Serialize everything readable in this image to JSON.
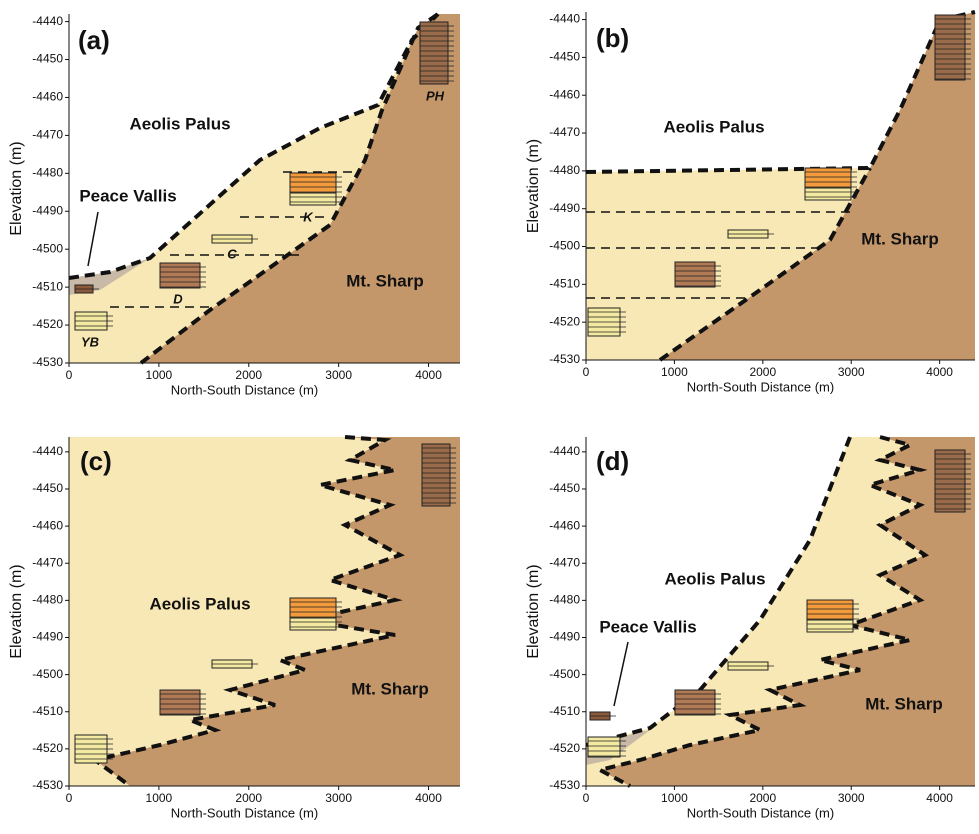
{
  "chart_data": [
    {
      "type": "cross-section",
      "panel_label": "(a)",
      "xlabel": "North-South Distance (m)",
      "ylabel": "Elevation (m)",
      "xlim": [
        0,
        4350
      ],
      "xticks": [
        0,
        1000,
        2000,
        3000,
        4000
      ],
      "ylim": [
        -4530,
        -4438
      ],
      "yticks": [
        -4530,
        -4520,
        -4510,
        -4500,
        -4490,
        -4480,
        -4470,
        -4460,
        -4450,
        -4440
      ],
      "annotations": [
        "Aeolis Palus",
        "Peace Vallis",
        "Mt. Sharp",
        "PH",
        "K",
        "C",
        "D",
        "YB"
      ]
    },
    {
      "type": "cross-section",
      "panel_label": "(b)",
      "xlabel": "North-South Distance (m)",
      "ylabel": "Elevation (m)",
      "xlim": [
        0,
        4400
      ],
      "xticks": [
        0,
        1000,
        2000,
        3000,
        4000
      ],
      "ylim": [
        -4530,
        -4438
      ],
      "yticks": [
        -4530,
        -4520,
        -4510,
        -4500,
        -4490,
        -4480,
        -4470,
        -4460,
        -4450,
        -4440
      ],
      "annotations": [
        "Aeolis Palus",
        "Mt. Sharp"
      ]
    },
    {
      "type": "cross-section",
      "panel_label": "(c)",
      "xlabel": "North-South Distance (m)",
      "ylabel": "Elevation (m)",
      "xlim": [
        0,
        4350
      ],
      "xticks": [
        0,
        1000,
        2000,
        3000,
        4000
      ],
      "ylim": [
        -4530,
        -4436
      ],
      "yticks": [
        -4530,
        -4520,
        -4510,
        -4500,
        -4490,
        -4480,
        -4470,
        -4460,
        -4450,
        -4440
      ],
      "annotations": [
        "Aeolis Palus",
        "Mt. Sharp"
      ]
    },
    {
      "type": "cross-section",
      "panel_label": "(d)",
      "xlabel": "North-South Distance (m)",
      "ylabel": "Elevation (m)",
      "xlim": [
        0,
        4400
      ],
      "xticks": [
        0,
        1000,
        2000,
        3000,
        4000
      ],
      "ylim": [
        -4530,
        -4436
      ],
      "yticks": [
        -4530,
        -4520,
        -4510,
        -4500,
        -4490,
        -4480,
        -4470,
        -4460,
        -4450,
        -4440
      ],
      "annotations": [
        "Aeolis Palus",
        "Peace Vallis",
        "Mt. Sharp"
      ]
    }
  ]
}
